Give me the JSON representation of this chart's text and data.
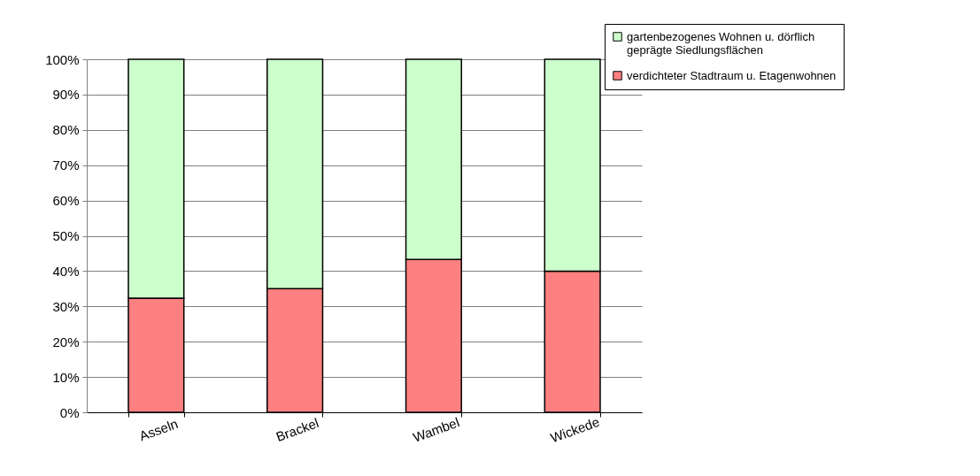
{
  "chart_data": {
    "type": "bar",
    "stacked": true,
    "categories": [
      "Asseln",
      "Brackel",
      "Wambel",
      "Wickede"
    ],
    "series": [
      {
        "name": "verdichteter Stadtraum u. Etagenwohnen",
        "color": "#ff8080",
        "values": [
          32.3,
          35.0,
          43.3,
          40.0
        ]
      },
      {
        "name": "gartenbezogenes Wohnen u. dörflich geprägte Siedlungsflächen",
        "color": "#ccffcc",
        "values": [
          67.7,
          65.0,
          56.7,
          60.0
        ]
      }
    ],
    "ylim": [
      0,
      100
    ],
    "yticks": [
      {
        "value": 0,
        "label": "0%"
      },
      {
        "value": 10,
        "label": "10%"
      },
      {
        "value": 20,
        "label": "20%"
      },
      {
        "value": 30,
        "label": "30%"
      },
      {
        "value": 40,
        "label": "40%"
      },
      {
        "value": 50,
        "label": "50%"
      },
      {
        "value": 60,
        "label": "60%"
      },
      {
        "value": 70,
        "label": "70%"
      },
      {
        "value": 80,
        "label": "80%"
      },
      {
        "value": 90,
        "label": "90%"
      },
      {
        "value": 100,
        "label": "100%"
      }
    ],
    "grid": "y",
    "legend": "top right"
  }
}
